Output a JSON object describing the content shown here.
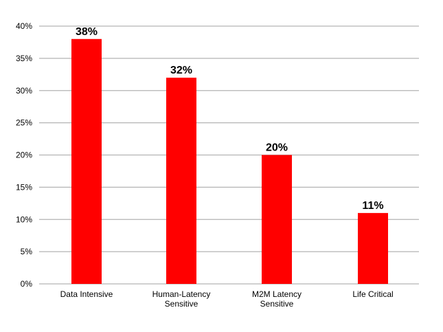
{
  "chart_data": {
    "type": "bar",
    "title": "",
    "xlabel": "",
    "ylabel": "",
    "categories": [
      [
        "Data Intensive"
      ],
      [
        "Human-Latency",
        "Sensitive"
      ],
      [
        "M2M Latency",
        "Sensitive"
      ],
      [
        "Life Critical"
      ]
    ],
    "values": [
      38,
      32,
      20,
      11
    ],
    "data_labels": [
      "38%",
      "32%",
      "20%",
      "11%"
    ],
    "ylim": [
      0,
      40
    ],
    "yticks": [
      0,
      5,
      10,
      15,
      20,
      25,
      30,
      35,
      40
    ],
    "ytick_labels": [
      "0%",
      "5%",
      "10%",
      "15%",
      "20%",
      "25%",
      "30%",
      "35%",
      "40%"
    ],
    "grid": true,
    "legend": "none",
    "bar_color": "#ff0000",
    "grid_color": "#b3b3b3"
  }
}
